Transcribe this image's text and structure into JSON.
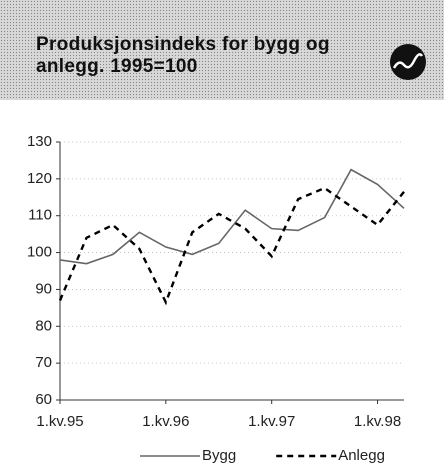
{
  "chart_data": {
    "type": "line",
    "title": "Produksjonsindeks for bygg og anlegg. 1995=100",
    "categories": [
      "1.kv.95",
      null,
      null,
      null,
      "1.kv.96",
      null,
      null,
      null,
      "1.kv.97",
      null,
      null,
      null,
      "1.kv.98",
      null
    ],
    "series": [
      {
        "name": "Bygg",
        "color": "#666666",
        "dash": false,
        "values": [
          98,
          97,
          99.5,
          105.5,
          101.5,
          99.5,
          102.5,
          111.5,
          106.5,
          106,
          109.5,
          122.5,
          118.5,
          112
        ]
      },
      {
        "name": "Anlegg",
        "color": "#000000",
        "dash": true,
        "values": [
          87,
          104,
          107.5,
          101,
          86.5,
          105.5,
          110.5,
          106.5,
          99,
          114.5,
          117.5,
          112.5,
          107.5,
          116.5
        ]
      }
    ],
    "ylim": [
      60,
      130
    ],
    "yticks": [
      60,
      70,
      80,
      90,
      100,
      110,
      120,
      130
    ],
    "grid": true,
    "legend": "bottom"
  }
}
